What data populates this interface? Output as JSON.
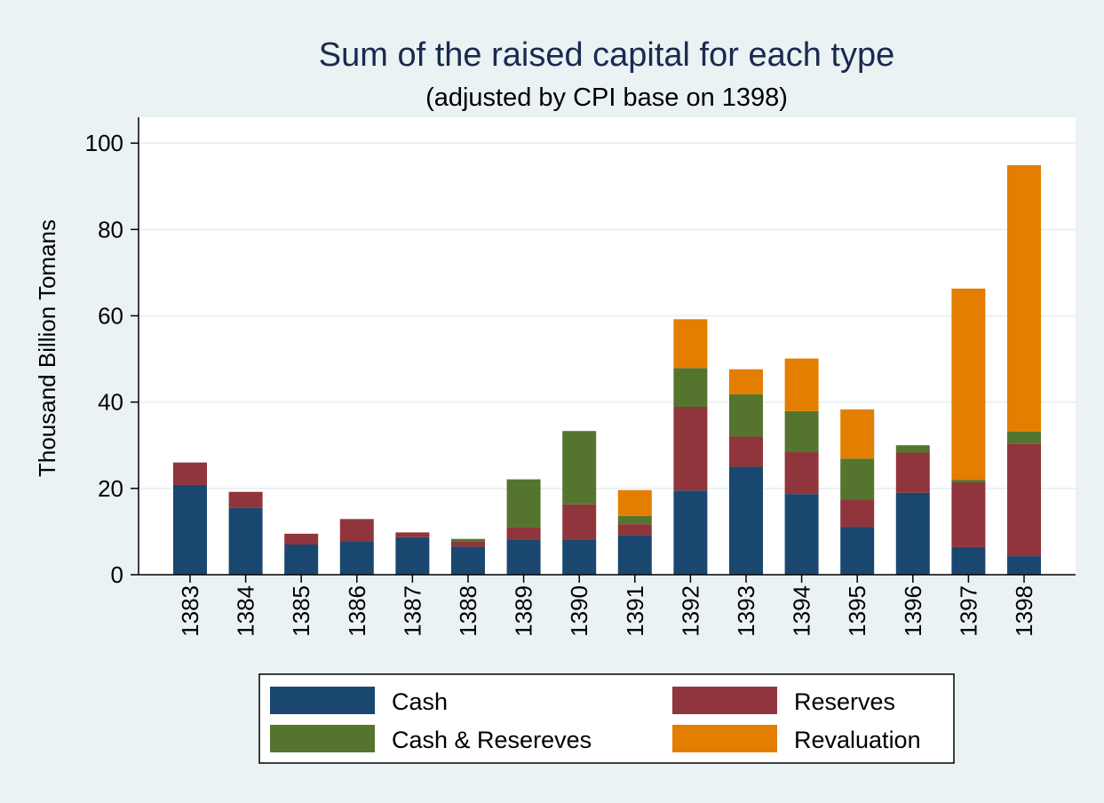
{
  "chart_data": {
    "type": "bar",
    "stacked": true,
    "title": "Sum of the raised capital for each type",
    "subtitle": "(adjusted by CPI base on 1398)",
    "xlabel": "",
    "ylabel": "Thousand Billion Tomans",
    "ylim": [
      0,
      106
    ],
    "yticks": [
      0,
      20,
      40,
      60,
      80,
      100
    ],
    "grid": true,
    "legend_position": "bottom",
    "categories": [
      "1383",
      "1384",
      "1385",
      "1386",
      "1387",
      "1388",
      "1389",
      "1390",
      "1391",
      "1392",
      "1393",
      "1394",
      "1395",
      "1396",
      "1397",
      "1398"
    ],
    "series": [
      {
        "name": "Cash",
        "color": "#1a476f",
        "values": [
          20.8,
          15.5,
          7.0,
          7.8,
          8.7,
          6.5,
          8.2,
          8.2,
          9.2,
          19.5,
          25.0,
          18.7,
          11.1,
          19.0,
          6.4,
          4.3
        ]
      },
      {
        "name": "Reserves",
        "color": "#90353b",
        "values": [
          5.2,
          3.7,
          2.5,
          5.1,
          1.1,
          1.2,
          2.8,
          8.1,
          2.5,
          19.4,
          7.0,
          9.7,
          6.3,
          9.3,
          15.0,
          26.1
        ]
      },
      {
        "name": "Cash & Resereves",
        "color": "#55752f",
        "values": [
          0,
          0,
          0,
          0,
          0,
          0.6,
          11.1,
          17.0,
          1.9,
          9.0,
          9.8,
          9.5,
          9.5,
          1.7,
          0.6,
          2.8
        ]
      },
      {
        "name": "Revaluation",
        "color": "#e37e00",
        "values": [
          0,
          0,
          0,
          0,
          0,
          0,
          0,
          0,
          6.0,
          11.3,
          5.8,
          12.2,
          11.4,
          0,
          44.3,
          61.7
        ]
      }
    ]
  }
}
